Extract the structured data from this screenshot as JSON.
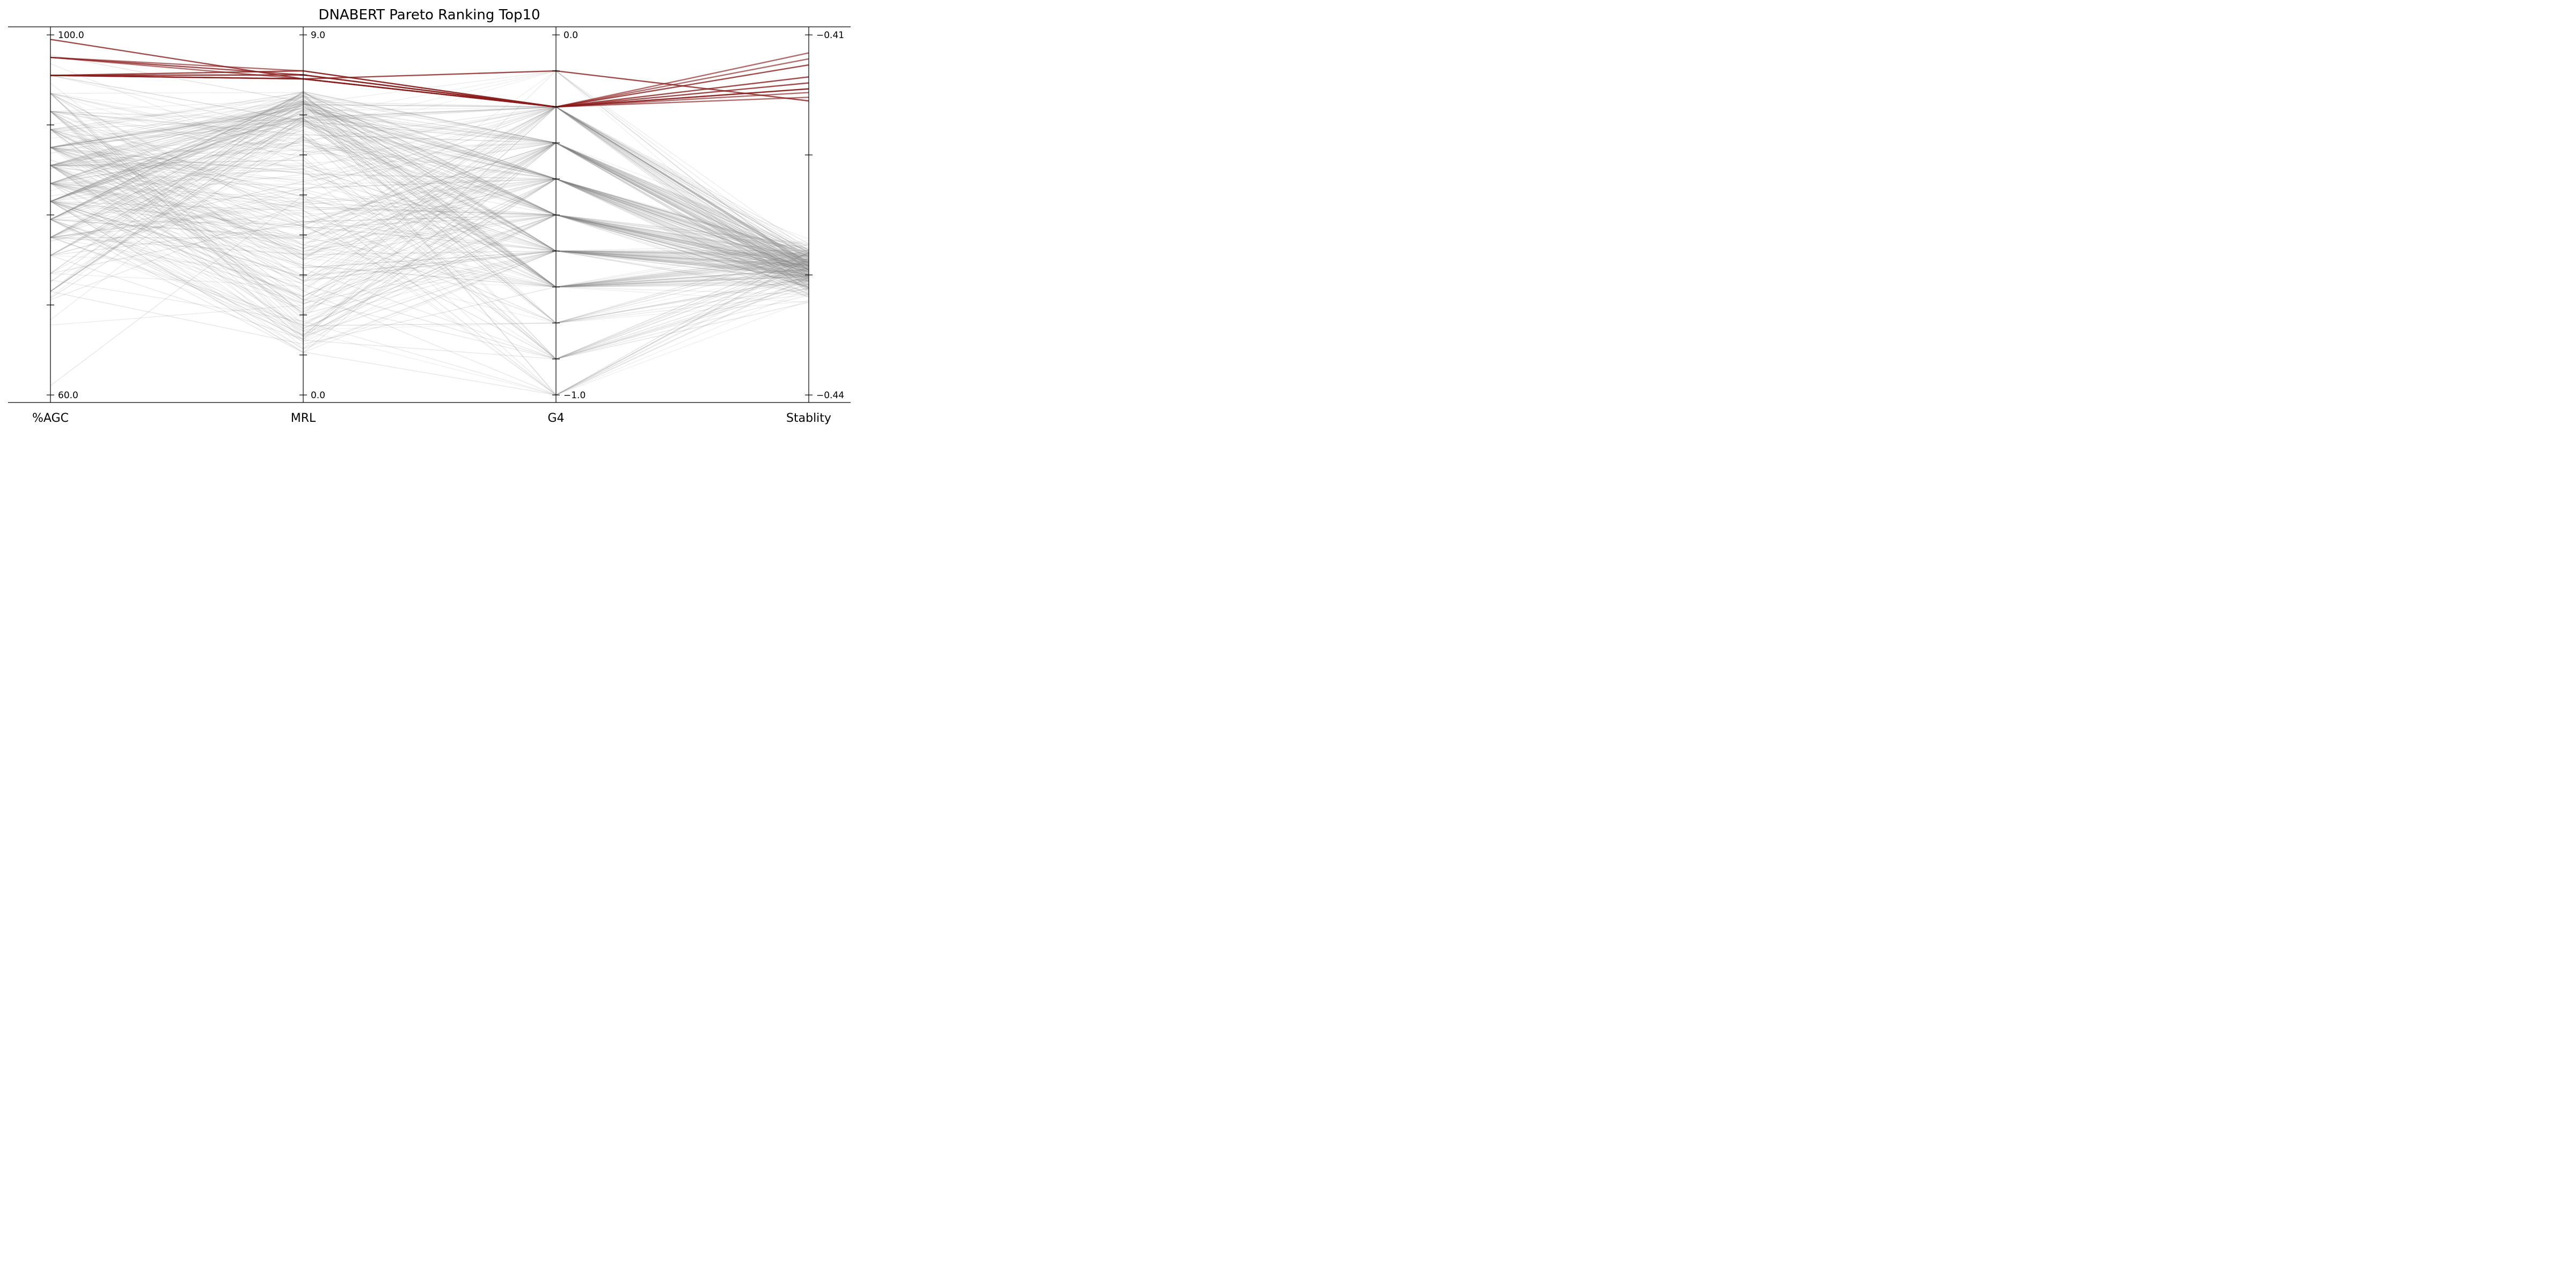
{
  "chart_data": {
    "type": "parallel_coordinates",
    "title": "DNABERT Pareto Ranking Top10",
    "axes": [
      {
        "name": "%AGC",
        "min": 60.0,
        "max": 100.0,
        "tick_labels": {
          "min": "60.0",
          "max": "100.0"
        },
        "tick_values": [
          60,
          70,
          80,
          90,
          100
        ]
      },
      {
        "name": "MRL",
        "min": 0.0,
        "max": 9.0,
        "tick_labels": {
          "min": "0.0",
          "max": "9.0"
        },
        "tick_values": [
          0,
          1,
          2,
          3,
          4,
          5,
          6,
          7,
          8,
          9
        ]
      },
      {
        "name": "G4",
        "min": -1.0,
        "max": 0.0,
        "tick_labels": {
          "min": "−1.0",
          "max": "0.0"
        },
        "tick_values": [
          -1.0,
          -0.9,
          -0.8,
          -0.7,
          -0.6,
          -0.5,
          -0.4,
          -0.3,
          -0.2,
          -0.1,
          0.0
        ]
      },
      {
        "name": "Stablity",
        "min": -0.44,
        "max": -0.41,
        "tick_labels": {
          "min": "−0.44",
          "max": "−0.41"
        },
        "tick_values": [
          -0.44,
          -0.43,
          -0.42,
          -0.41
        ]
      }
    ],
    "series": [
      {
        "role": "top10",
        "color": "#8b1a1a",
        "lines": [
          [
            97.5,
            8.0,
            -0.2,
            -0.4135
          ],
          [
            97.5,
            7.9,
            -0.2,
            -0.4145
          ],
          [
            95.5,
            8.1,
            -0.2,
            -0.414
          ],
          [
            95.5,
            8.0,
            -0.2,
            -0.4152
          ],
          [
            95.5,
            7.9,
            -0.2,
            -0.4145
          ],
          [
            95.5,
            8.0,
            -0.2,
            -0.4148
          ],
          [
            95.5,
            7.9,
            -0.1,
            -0.4155
          ],
          [
            95.5,
            7.9,
            -0.2,
            -0.412
          ],
          [
            99.5,
            7.9,
            -0.2,
            -0.4125
          ],
          [
            97.5,
            8.1,
            -0.2,
            -0.4115
          ]
        ]
      },
      {
        "role": "other",
        "color": "#808080",
        "count": 300
      }
    ],
    "grid": false,
    "legend": "none"
  }
}
